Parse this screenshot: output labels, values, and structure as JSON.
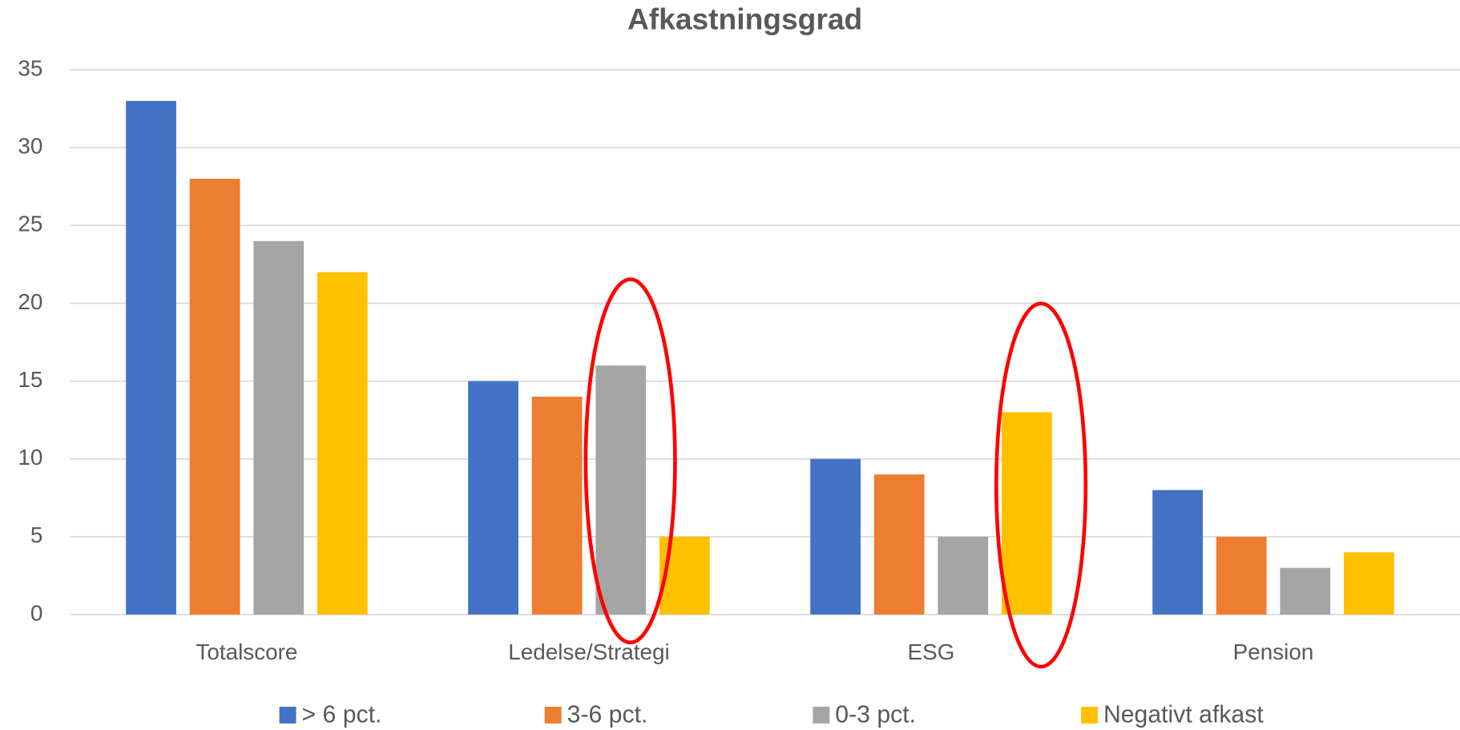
{
  "chart_data": {
    "type": "bar",
    "title": "Afkastningsgrad",
    "categories": [
      "Totalscore",
      "Ledelse/Strategi",
      "ESG",
      "Pension"
    ],
    "series": [
      {
        "name": "> 6 pct.",
        "color": "#4472c4",
        "values": [
          33,
          15,
          10,
          8
        ]
      },
      {
        "name": "3-6 pct.",
        "color": "#ed7d31",
        "values": [
          28,
          14,
          9,
          5
        ]
      },
      {
        "name": "0-3 pct.",
        "color": "#a5a5a5",
        "values": [
          24,
          16,
          5,
          3
        ]
      },
      {
        "name": "Negativt afkast",
        "color": "#ffc000",
        "values": [
          22,
          5,
          13,
          4
        ]
      }
    ],
    "ylim": [
      0,
      35
    ],
    "yticks": [
      0,
      5,
      10,
      15,
      20,
      25,
      30,
      35
    ],
    "grid": true,
    "legend": "bottom"
  }
}
